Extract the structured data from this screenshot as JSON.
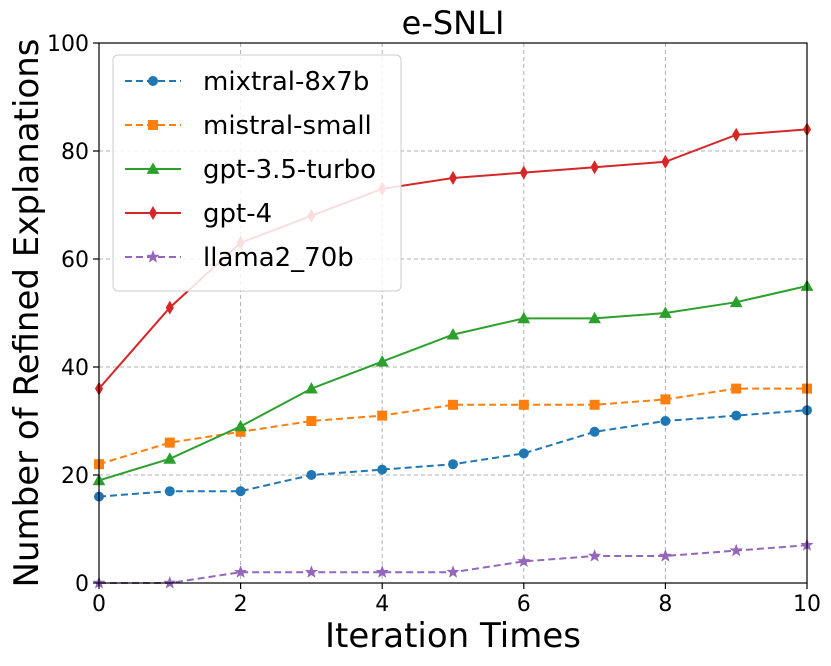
{
  "chart_data": {
    "type": "line",
    "title": "e-SNLI",
    "xlabel": "Iteration Times",
    "ylabel": "Number of Refined Explanations",
    "xlim": [
      0,
      10
    ],
    "ylim": [
      0,
      100
    ],
    "xticks": [
      0,
      2,
      4,
      6,
      8,
      10
    ],
    "yticks": [
      0,
      20,
      40,
      60,
      80,
      100
    ],
    "grid": true,
    "legend_position": "upper-left",
    "x": [
      0,
      1,
      2,
      3,
      4,
      5,
      6,
      7,
      8,
      9,
      10
    ],
    "series": [
      {
        "name": "mixtral-8x7b",
        "color": "#1f77b4",
        "dash": "dashed",
        "marker": "circle",
        "values": [
          16,
          17,
          17,
          20,
          21,
          22,
          24,
          28,
          30,
          31,
          32
        ]
      },
      {
        "name": "mistral-small",
        "color": "#ff7f0e",
        "dash": "dashed",
        "marker": "square",
        "values": [
          22,
          26,
          28,
          30,
          31,
          33,
          33,
          33,
          34,
          36,
          36
        ]
      },
      {
        "name": "gpt-3.5-turbo",
        "color": "#2ca02c",
        "dash": "solid",
        "marker": "triangle",
        "values": [
          19,
          23,
          29,
          36,
          41,
          46,
          49,
          49,
          50,
          52,
          55
        ]
      },
      {
        "name": "gpt-4",
        "color": "#d62728",
        "dash": "solid",
        "marker": "diamond",
        "values": [
          36,
          51,
          63,
          68,
          73,
          75,
          76,
          77,
          78,
          83,
          84
        ]
      },
      {
        "name": "llama2_70b",
        "color": "#9467bd",
        "dash": "dashed",
        "marker": "star",
        "values": [
          0,
          0,
          2,
          2,
          2,
          2,
          4,
          5,
          5,
          6,
          7
        ]
      }
    ]
  }
}
